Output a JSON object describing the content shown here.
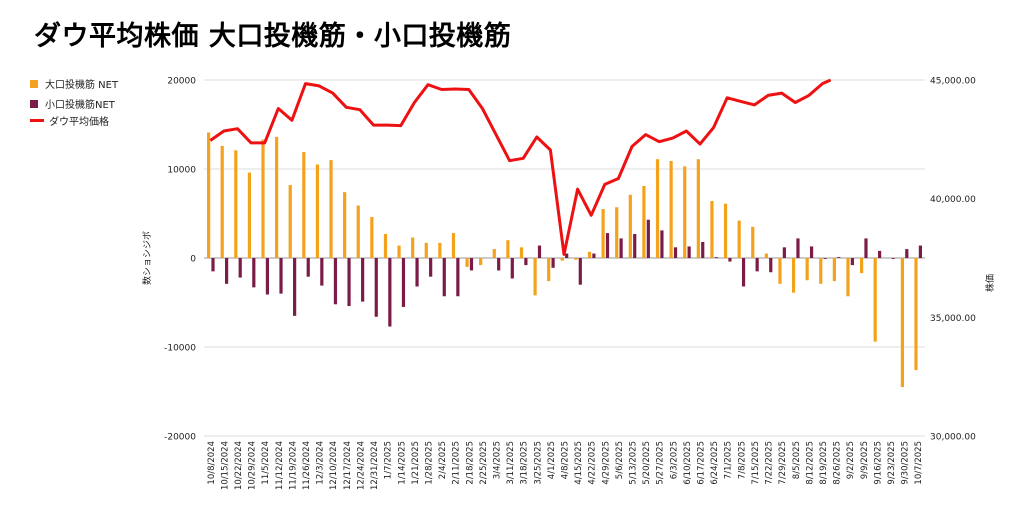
{
  "title": "ダウ平均株価 大口投機筋・小口投機筋",
  "legend": {
    "large": "大口投機筋  NET",
    "small": "小口投機筋NET",
    "dow": "ダウ平均価格"
  },
  "colors": {
    "large": "#f4a21c",
    "small": "#7b1c48",
    "dow": "#ee1111"
  },
  "chart_data": {
    "type": "bar",
    "ylabel": "数ショシジボ",
    "y2label": "株価",
    "ylim": [
      -20000,
      20000
    ],
    "yticks": [
      20000,
      10000,
      0,
      -10000,
      -20000
    ],
    "y2lim": [
      30000,
      45000
    ],
    "y2ticks": [
      45000,
      40000,
      35000,
      30000
    ],
    "y2ticklabels": [
      "45,000.00",
      "40,000.00",
      "35,000.00",
      "30,000.00"
    ],
    "xtick_labels": [
      "10/8/2024",
      "10/15/2024",
      "10/22/2024",
      "10/29/2024",
      "11/5/2024",
      "11/12/2024",
      "11/19/2024",
      "11/26/2024",
      "12/3/2024",
      "12/10/2024",
      "12/17/2024",
      "12/24/2024",
      "12/31/2024",
      "1/7/2025",
      "1/14/2025",
      "1/21/2025",
      "1/28/2025",
      "2/4/2025",
      "2/11/2025",
      "2/18/2025",
      "2/25/2025",
      "3/4/2025",
      "3/11/2025",
      "3/18/2025",
      "3/25/2025",
      "4/1/2025",
      "4/8/2025",
      "4/15/2025",
      "4/22/2025",
      "4/29/2025",
      "5/6/2025",
      "5/13/2025",
      "5/20/2025",
      "5/27/2025",
      "6/3/2025",
      "6/10/2025",
      "6/17/2025",
      "6/24/2025",
      "7/1/2025",
      "7/8/2025",
      "7/15/2025",
      "7/22/2025",
      "7/29/2025",
      "8/5/2025",
      "8/12/2025",
      "8/19/2025",
      "8/26/2025",
      "9/2/2025",
      "9/9/2025",
      "9/16/2025",
      "9/23/2025",
      "9/30/2025",
      "10/7/2025"
    ],
    "series": [
      {
        "name": "大口投機筋  NET",
        "type": "bar",
        "values": [
          14100,
          12600,
          12100,
          9600,
          13300,
          13600,
          8200,
          11900,
          10500,
          11000,
          7400,
          5900,
          4600,
          2700,
          1400,
          2300,
          1700,
          1700,
          2800,
          -1000,
          -800,
          1000,
          2000,
          1200,
          -4200,
          -2600,
          -300,
          -200,
          700,
          5500,
          5700,
          7100,
          8100,
          11100,
          10900,
          10300,
          11100,
          6400,
          6100,
          4200,
          3500,
          500,
          -2900,
          -3900,
          -2500,
          -2900,
          -2600,
          -4300,
          -1700,
          -9400,
          0,
          -14500,
          -12600
        ]
      },
      {
        "name": "小口投機筋NET",
        "type": "bar",
        "values": [
          -1500,
          -2900,
          -2200,
          -3300,
          -4100,
          -4000,
          -6500,
          -2100,
          -3100,
          -5200,
          -5400,
          -4900,
          -6600,
          -7700,
          -5500,
          -3200,
          -2100,
          -4300,
          -4300,
          -1400,
          0,
          -1400,
          -2300,
          -800,
          1400,
          -1100,
          500,
          -3000,
          500,
          2800,
          2200,
          2700,
          4300,
          3100,
          1200,
          1300,
          1800,
          100,
          -400,
          -3200,
          -1500,
          -1600,
          1200,
          2200,
          1300,
          -100,
          100,
          -800,
          2200,
          800,
          -100,
          1000,
          1400
        ]
      },
      {
        "name": "ダウ平均価格",
        "type": "line",
        "axis": "right",
        "values": [
          42450,
          42850,
          42950,
          42350,
          42350,
          43800,
          43300,
          44850,
          44750,
          44450,
          43850,
          43750,
          43100,
          43100,
          43080,
          44050,
          44800,
          44600,
          44620,
          44600,
          43800,
          42700,
          41600,
          41700,
          42600,
          42050,
          37650,
          40400,
          39300,
          40600,
          40850,
          42200,
          42700,
          42400,
          42550,
          42850,
          42300,
          43000,
          44250,
          44100,
          43950,
          44350,
          44450,
          44050,
          44350,
          44850,
          null,
          null,
          null,
          null,
          null,
          null,
          null
        ]
      }
    ]
  }
}
